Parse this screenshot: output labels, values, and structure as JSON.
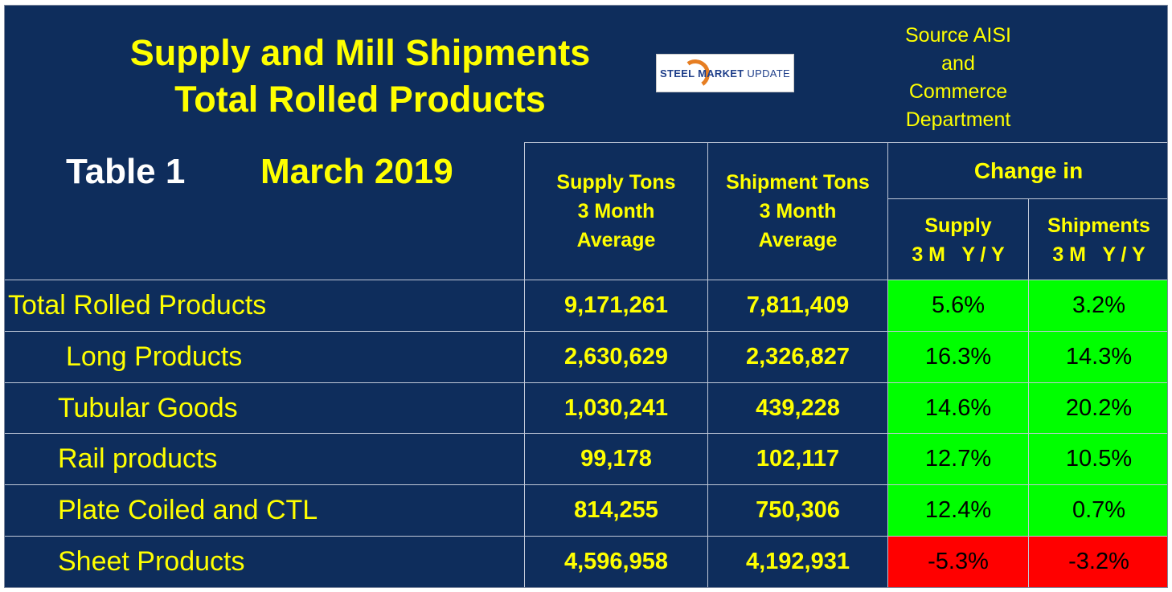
{
  "title": {
    "line1": "Supply and Mill Shipments",
    "line2": "Total Rolled Products"
  },
  "logo": {
    "brand": "STEEL MARKET",
    "suffix": "UPDATE"
  },
  "source": {
    "line1": "Source AISI",
    "line2": "and",
    "line3": "Commerce",
    "line4": "Department"
  },
  "table_label": "Table 1",
  "month": "March 2019",
  "headers": {
    "supply": [
      "Supply Tons",
      "3 Month",
      "Average"
    ],
    "shipment": [
      "Shipment Tons",
      "3 Month",
      "Average"
    ],
    "change": "Change in",
    "supply_change": [
      "Supply",
      "3 M   Y / Y"
    ],
    "shipments_change": [
      "Shipments",
      "3 M   Y / Y"
    ]
  },
  "rows": [
    {
      "label": "Total Rolled Products",
      "supply": "9,171,261",
      "shipment": "7,811,409",
      "supply_change": "5.6%",
      "shipments_change": "3.2%",
      "supply_status": "pos",
      "shipments_status": "pos"
    },
    {
      "label": "Long Products",
      "supply": "2,630,629",
      "shipment": "2,326,827",
      "supply_change": "16.3%",
      "shipments_change": "14.3%",
      "supply_status": "pos",
      "shipments_status": "pos"
    },
    {
      "label": "Tubular Goods",
      "supply": "1,030,241",
      "shipment": "439,228",
      "supply_change": "14.6%",
      "shipments_change": "20.2%",
      "supply_status": "pos",
      "shipments_status": "pos"
    },
    {
      "label": "Rail products",
      "supply": "99,178",
      "shipment": "102,117",
      "supply_change": "12.7%",
      "shipments_change": "10.5%",
      "supply_status": "pos",
      "shipments_status": "pos"
    },
    {
      "label": "Plate Coiled and CTL",
      "supply": "814,255",
      "shipment": "750,306",
      "supply_change": "12.4%",
      "shipments_change": "0.7%",
      "supply_status": "pos",
      "shipments_status": "pos"
    },
    {
      "label": "Sheet Products",
      "supply": "4,596,958",
      "shipment": "4,192,931",
      "supply_change": "-5.3%",
      "shipments_change": "-3.2%",
      "supply_status": "neg",
      "shipments_status": "neg"
    }
  ],
  "colors": {
    "background": "#0e2d5c",
    "text": "#ffff00",
    "positive": "#00ff00",
    "negative": "#ff0000"
  }
}
